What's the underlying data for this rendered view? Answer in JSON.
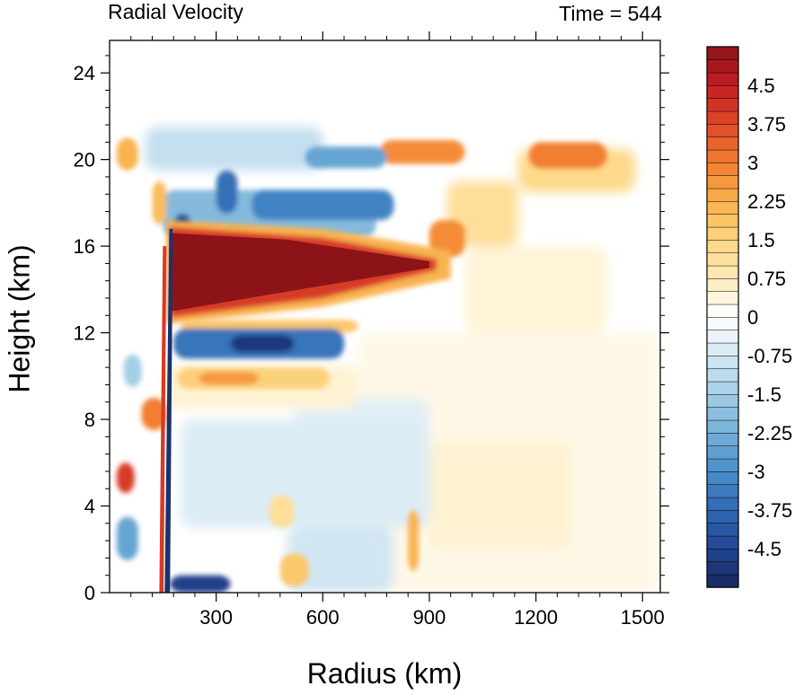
{
  "header": {
    "title_left": "Radial Velocity",
    "title_right": "Time = 544"
  },
  "chart_data": {
    "type": "heatmap",
    "title": "Radial Velocity",
    "annotation": "Time = 544",
    "xlabel": "Radius (km)",
    "ylabel": "Height (km)",
    "xlim": [
      0,
      1550
    ],
    "ylim": [
      0,
      25.5
    ],
    "x_ticks": [
      "300",
      "600",
      "900",
      "1200",
      "1500"
    ],
    "x_tick_values": [
      300,
      600,
      900,
      1200,
      1500
    ],
    "y_ticks": [
      "0",
      "4",
      "8",
      "12",
      "16",
      "20",
      "24"
    ],
    "y_tick_values": [
      0,
      4,
      8,
      12,
      16,
      20,
      24
    ],
    "colorbar": {
      "min": -5.25,
      "max": 5.25,
      "step": 0.25,
      "labels": [
        "4.5",
        "3.75",
        "3",
        "2.25",
        "1.5",
        "0.75",
        "0",
        "-0.75",
        "-1.5",
        "-2.25",
        "-3",
        "-3.75",
        "-4.5"
      ],
      "label_values": [
        4.5,
        3.75,
        3,
        2.25,
        1.5,
        0.75,
        0,
        -0.75,
        -1.5,
        -2.25,
        -3,
        -3.75,
        -4.5
      ]
    },
    "features": [
      {
        "label": "upper-level outflow jet",
        "r": [
          170,
          920
        ],
        "z": [
          12.8,
          16.5
        ],
        "value": 5.25
      },
      {
        "label": "inflow layer below outflow",
        "r": [
          180,
          650
        ],
        "z": [
          10.8,
          12.2
        ],
        "value": -4.5
      },
      {
        "label": "upper inflow band",
        "r": [
          150,
          750
        ],
        "z": [
          16.5,
          18.5
        ],
        "value": -3.5
      },
      {
        "label": "upper outflow patches",
        "r": [
          750,
          1480
        ],
        "z": [
          19.5,
          21
        ],
        "value": 3
      },
      {
        "label": "boundary layer inflow",
        "r": [
          170,
          350
        ],
        "z": [
          0,
          0.8
        ],
        "value": -4.5
      }
    ]
  }
}
